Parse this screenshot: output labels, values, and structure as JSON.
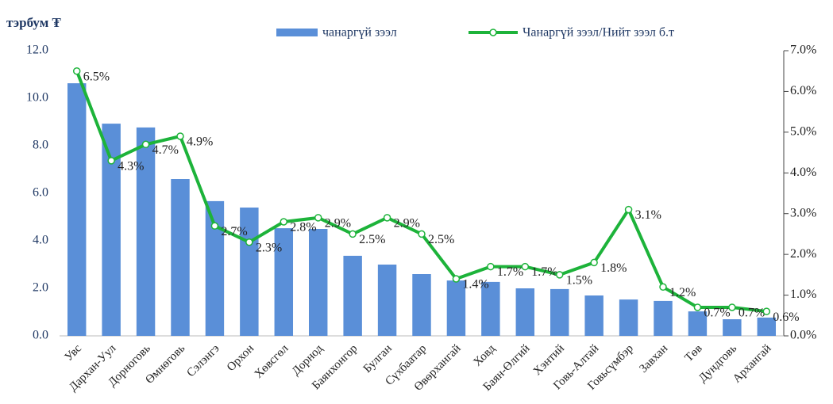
{
  "chart_data": {
    "type": "bar-line",
    "y_unit_label": "тэрбум ₮",
    "categories": [
      "Увс",
      "Дархан-Уул",
      "Дорноговь",
      "Өмнөговь",
      "Сэлэнгэ",
      "Орхон",
      "Хөвсгөл",
      "Дорнод",
      "Баянхонгор",
      "Булган",
      "Сүхбаатар",
      "Өвөрхангай",
      "Ховд",
      "Баян-Өлгий",
      "Хэнтий",
      "Говь-Алтай",
      "Говьсүмбэр",
      "Завхан",
      "Төв",
      "Дундговь",
      "Архангай"
    ],
    "series": [
      {
        "name": "чанаргүй зээл",
        "type": "bar",
        "color": "#5a8fd8",
        "values": [
          10.63,
          8.93,
          8.77,
          6.6,
          5.67,
          5.4,
          4.53,
          4.5,
          3.37,
          3.0,
          2.6,
          2.33,
          2.27,
          2.0,
          1.97,
          1.7,
          1.53,
          1.47,
          1.03,
          0.7,
          0.77
        ]
      },
      {
        "name": "Чанаргүй зээл/Нийт зээл б.т",
        "type": "line",
        "axis": "y2",
        "color": "#1db33a",
        "values": [
          6.5,
          4.3,
          4.7,
          4.9,
          2.7,
          2.3,
          2.8,
          2.9,
          2.5,
          2.9,
          2.5,
          1.4,
          1.7,
          1.7,
          1.5,
          1.8,
          3.1,
          1.2,
          0.7,
          0.7,
          0.6
        ],
        "value_labels": [
          "6.5%",
          "4.3%",
          "4.7%",
          "4.9%",
          "2.7%",
          "2.3%",
          "2.8%",
          "2.9%",
          "2.5%",
          "2.9%",
          "2.5%",
          "1.4%",
          "1.7%",
          "1.7%",
          "1.5%",
          "1.8%",
          "3.1%",
          "1.2%",
          "0.7%",
          "0.7%",
          "0.6%"
        ]
      }
    ],
    "ylim": [
      0,
      12
    ],
    "yticks": [
      {
        "value": 0,
        "label": "0.0"
      },
      {
        "value": 2,
        "label": "2.0"
      },
      {
        "value": 4,
        "label": "4.0"
      },
      {
        "value": 6,
        "label": "6.0"
      },
      {
        "value": 8,
        "label": "8.0"
      },
      {
        "value": 10,
        "label": "10.0"
      },
      {
        "value": 12,
        "label": "12.0"
      }
    ],
    "y2lim": [
      0,
      7
    ],
    "y2ticks": [
      {
        "value": 0,
        "label": "0.0%"
      },
      {
        "value": 1,
        "label": "1.0%"
      },
      {
        "value": 2,
        "label": "2.0%"
      },
      {
        "value": 3,
        "label": "3.0%"
      },
      {
        "value": 4,
        "label": "4.0%"
      },
      {
        "value": 5,
        "label": "5.0%"
      },
      {
        "value": 6,
        "label": "6.0%"
      },
      {
        "value": 7,
        "label": "7.0%"
      }
    ],
    "legend": "top"
  }
}
